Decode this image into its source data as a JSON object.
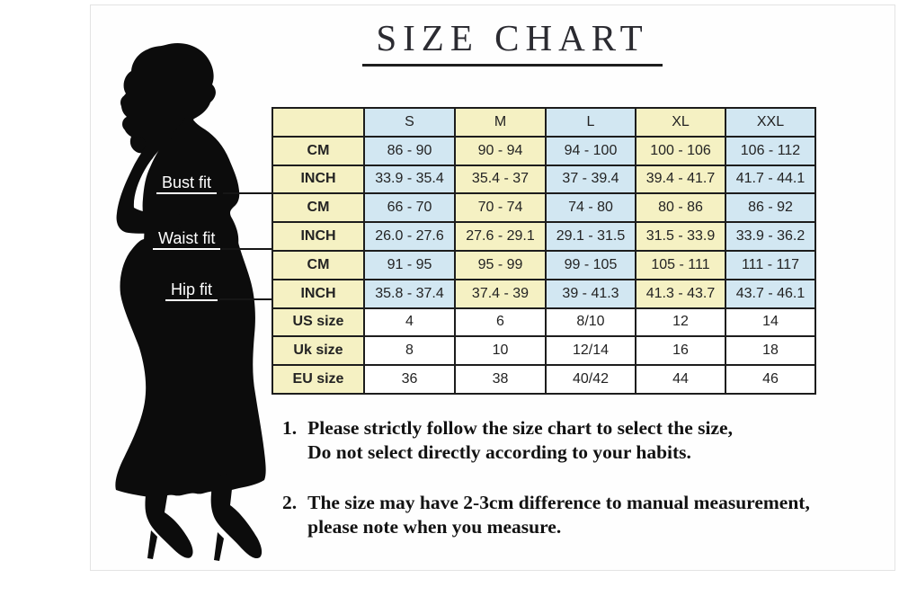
{
  "title": {
    "text": "SIZE CHART"
  },
  "figure": {
    "bust_label": "Bust fit",
    "waist_label": "Waist fit",
    "hip_label": "Hip fit"
  },
  "size_table": {
    "columns": [
      "S",
      "M",
      "L",
      "XL",
      "XXL"
    ],
    "corner_label": "",
    "rows": [
      {
        "label": "CM",
        "group": "bust",
        "palette": "striped",
        "values": [
          "86 - 90",
          "90 - 94",
          "94 - 100",
          "100 - 106",
          "106 - 112"
        ]
      },
      {
        "label": "INCH",
        "group": "bust",
        "palette": "striped",
        "values": [
          "33.9 - 35.4",
          "35.4 - 37",
          "37 - 39.4",
          "39.4 - 41.7",
          "41.7 - 44.1"
        ]
      },
      {
        "label": "CM",
        "group": "waist",
        "palette": "striped",
        "values": [
          "66 - 70",
          "70 - 74",
          "74 - 80",
          "80 - 86",
          "86 - 92"
        ]
      },
      {
        "label": "INCH",
        "group": "waist",
        "palette": "striped",
        "values": [
          "26.0 - 27.6",
          "27.6 - 29.1",
          "29.1 - 31.5",
          "31.5 - 33.9",
          "33.9 - 36.2"
        ]
      },
      {
        "label": "CM",
        "group": "hip",
        "palette": "striped",
        "values": [
          "91 - 95",
          "95 - 99",
          "99 - 105",
          "105 - 111",
          "111 - 117"
        ]
      },
      {
        "label": "INCH",
        "group": "hip",
        "palette": "striped",
        "values": [
          "35.8 - 37.4",
          "37.4 - 39",
          "39 - 41.3",
          "41.3 - 43.7",
          "43.7 - 46.1"
        ]
      },
      {
        "label": "US size",
        "group": "size",
        "palette": "plain",
        "values": [
          "4",
          "6",
          "8/10",
          "12",
          "14"
        ]
      },
      {
        "label": "Uk size",
        "group": "size",
        "palette": "plain",
        "values": [
          "8",
          "10",
          "12/14",
          "16",
          "18"
        ]
      },
      {
        "label": "EU size",
        "group": "size",
        "palette": "plain",
        "values": [
          "36",
          "38",
          "40/42",
          "44",
          "46"
        ]
      }
    ]
  },
  "notes": [
    {
      "number": "1.",
      "lines": [
        "Please strictly follow the size chart to select the size,",
        "Do not select directly according to your habits."
      ]
    },
    {
      "number": "2.",
      "lines": [
        "The size may have 2-3cm difference  to manual measurement,",
        "please note when you measure."
      ]
    }
  ],
  "colors": {
    "cell_yellow": "#f5f1c3",
    "cell_blue": "#d2e7f2",
    "cell_white": "#ffffff",
    "table_border": "#1d1d1d",
    "silhouette": "#0c0c0c",
    "title_text": "#2b2b31",
    "note_text": "#121212"
  }
}
